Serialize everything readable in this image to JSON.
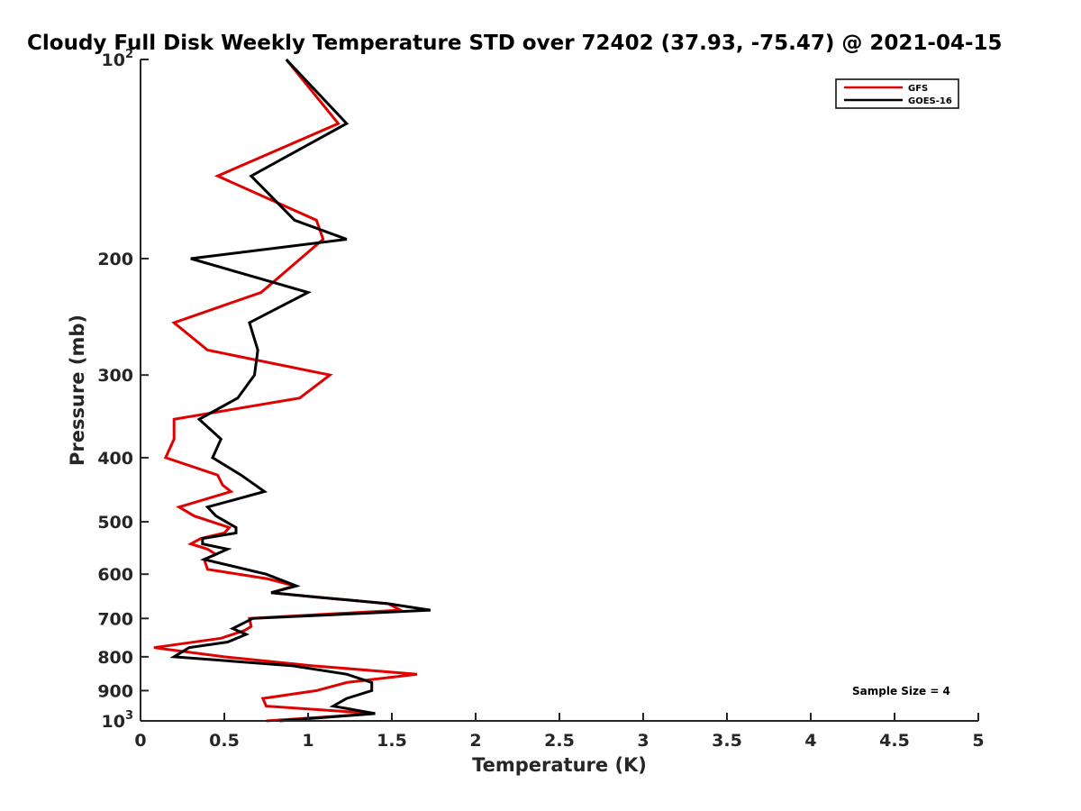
{
  "chart_data": {
    "type": "line",
    "title": "Cloudy Full Disk Weekly Temperature STD over 72402 (37.93, -75.47) @ 2021-04-15",
    "xlabel": "Temperature (K)",
    "ylabel": "Pressure (mb)",
    "xlim": [
      0,
      5
    ],
    "ylim": [
      100,
      1000
    ],
    "y_scale": "log",
    "y_reversed": true,
    "x_ticks": [
      "0",
      "0.5",
      "1",
      "1.5",
      "2",
      "2.5",
      "3",
      "3.5",
      "4",
      "4.5",
      "5"
    ],
    "y_ticks": [
      {
        "value": 100,
        "base": "10",
        "exp": "2"
      },
      {
        "value": 200,
        "label": "200"
      },
      {
        "value": 300,
        "label": "300"
      },
      {
        "value": 400,
        "label": "400"
      },
      {
        "value": 500,
        "label": "500"
      },
      {
        "value": 600,
        "label": "600"
      },
      {
        "value": 700,
        "label": "700"
      },
      {
        "value": 800,
        "label": "800"
      },
      {
        "value": 900,
        "label": "900"
      },
      {
        "value": 1000,
        "base": "10",
        "exp": "3"
      }
    ],
    "grid": false,
    "legend_position": "top-right",
    "series": [
      {
        "name": "GFS",
        "color": "#e00000",
        "points": [
          [
            0.87,
            100
          ],
          [
            1.18,
            125
          ],
          [
            0.46,
            150
          ],
          [
            1.05,
            175
          ],
          [
            1.09,
            187
          ],
          [
            0.72,
            225
          ],
          [
            0.2,
            250
          ],
          [
            0.4,
            275
          ],
          [
            1.13,
            300
          ],
          [
            0.95,
            325
          ],
          [
            0.2,
            350
          ],
          [
            0.2,
            375
          ],
          [
            0.15,
            400
          ],
          [
            0.46,
            425
          ],
          [
            0.49,
            440
          ],
          [
            0.54,
            450
          ],
          [
            0.23,
            475
          ],
          [
            0.32,
            490
          ],
          [
            0.53,
            510
          ],
          [
            0.5,
            520
          ],
          [
            0.36,
            530
          ],
          [
            0.3,
            540
          ],
          [
            0.4,
            550
          ],
          [
            0.45,
            560
          ],
          [
            0.38,
            570
          ],
          [
            0.4,
            590
          ],
          [
            0.76,
            610
          ],
          [
            0.92,
            625
          ],
          [
            0.78,
            640
          ],
          [
            1.05,
            650
          ],
          [
            1.48,
            665
          ],
          [
            1.55,
            680
          ],
          [
            0.65,
            700
          ],
          [
            0.66,
            720
          ],
          [
            0.62,
            730
          ],
          [
            0.48,
            750
          ],
          [
            0.08,
            775
          ],
          [
            0.5,
            800
          ],
          [
            1.02,
            825
          ],
          [
            1.65,
            850
          ],
          [
            1.23,
            875
          ],
          [
            1.05,
            900
          ],
          [
            0.73,
            925
          ],
          [
            0.75,
            950
          ],
          [
            1.4,
            975
          ],
          [
            0.75,
            1000
          ]
        ]
      },
      {
        "name": "GOES-16",
        "color": "#000000",
        "points": [
          [
            0.87,
            100
          ],
          [
            1.23,
            125
          ],
          [
            0.66,
            150
          ],
          [
            0.92,
            175
          ],
          [
            1.23,
            187
          ],
          [
            0.3,
            200
          ],
          [
            1.0,
            225
          ],
          [
            0.65,
            250
          ],
          [
            0.7,
            275
          ],
          [
            0.68,
            300
          ],
          [
            0.58,
            325
          ],
          [
            0.35,
            350
          ],
          [
            0.48,
            375
          ],
          [
            0.43,
            400
          ],
          [
            0.6,
            425
          ],
          [
            0.74,
            450
          ],
          [
            0.4,
            475
          ],
          [
            0.45,
            490
          ],
          [
            0.57,
            510
          ],
          [
            0.57,
            520
          ],
          [
            0.37,
            530
          ],
          [
            0.37,
            540
          ],
          [
            0.52,
            550
          ],
          [
            0.38,
            570
          ],
          [
            0.75,
            600
          ],
          [
            0.93,
            625
          ],
          [
            0.78,
            640
          ],
          [
            1.06,
            650
          ],
          [
            1.48,
            665
          ],
          [
            1.73,
            680
          ],
          [
            0.67,
            700
          ],
          [
            0.55,
            725
          ],
          [
            0.63,
            740
          ],
          [
            0.52,
            760
          ],
          [
            0.29,
            775
          ],
          [
            0.2,
            800
          ],
          [
            0.9,
            825
          ],
          [
            1.23,
            850
          ],
          [
            1.38,
            875
          ],
          [
            1.38,
            900
          ],
          [
            1.23,
            925
          ],
          [
            1.15,
            950
          ],
          [
            1.4,
            975
          ],
          [
            0.83,
            1000
          ]
        ]
      }
    ],
    "annotations": [
      "Sample Size = 4"
    ]
  }
}
